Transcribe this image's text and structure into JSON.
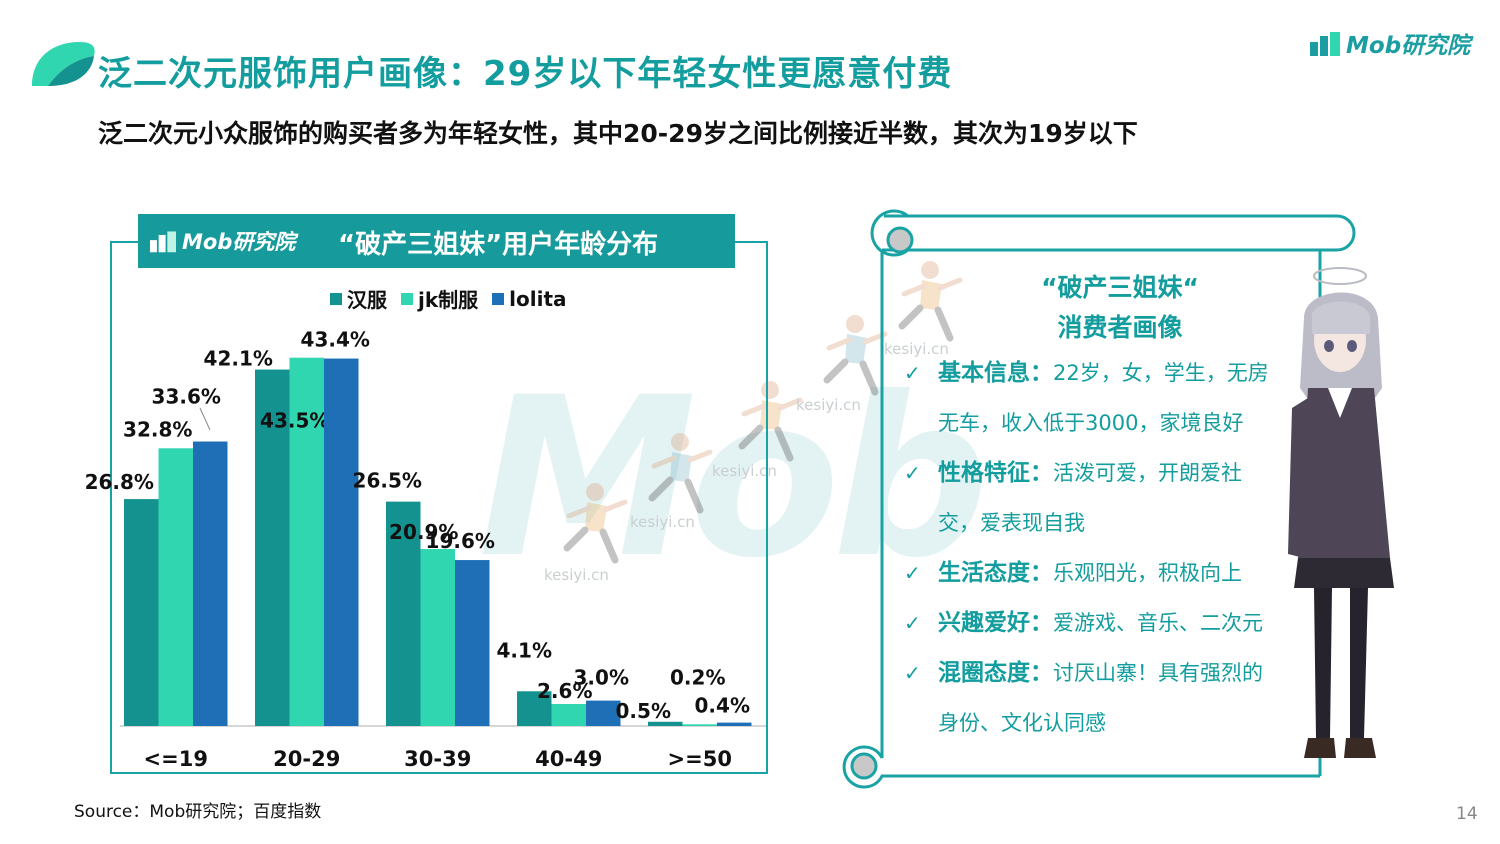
{
  "header": {
    "title": "泛二次元服饰用户画像：29岁以下年轻女性更愿意付费",
    "subtitle": "泛二次元小众服饰的购买者多为年轻女性，其中20-29岁之间比例接近半数，其次为19岁以下",
    "brand": "Mob研究院"
  },
  "watermark": {
    "big_text": "Mob",
    "site": "kesiyi.cn"
  },
  "chart_panel": {
    "brand": "Mob研究院",
    "title": "“破产三姐妹”用户年龄分布"
  },
  "colors": {
    "accent": "#139d9e",
    "hanfu": "#13928f",
    "jk": "#2fd6b0",
    "lolita": "#1e6fb5",
    "frame": "#1aa3a4"
  },
  "chart_data": {
    "type": "bar",
    "title": "“破产三姐妹”用户年龄分布",
    "categories": [
      "<=19",
      "20-29",
      "30-39",
      "40-49",
      ">=50"
    ],
    "series": [
      {
        "name": "汉服",
        "values": [
          26.8,
          42.1,
          26.5,
          4.1,
          0.5
        ],
        "labels": [
          "26.8%",
          "42.1%",
          "26.5%",
          "4.1%",
          "0.5%"
        ]
      },
      {
        "name": "jk制服",
        "values": [
          32.8,
          43.5,
          20.9,
          2.6,
          0.2
        ],
        "labels": [
          "32.8%",
          "43.5%",
          "20.9%",
          "2.6%",
          "0.2%"
        ]
      },
      {
        "name": "lolita",
        "values": [
          33.6,
          43.4,
          19.6,
          3.0,
          0.4
        ],
        "labels": [
          "33.6%",
          "43.4%",
          "19.6%",
          "3.0%",
          "0.4%"
        ]
      }
    ],
    "ylim": [
      0,
      45
    ],
    "legend_position": "top"
  },
  "persona": {
    "title_line1": "“破产三姐妹“",
    "title_line2": "消费者画像",
    "check_icon": "check-icon",
    "items": [
      {
        "label": "基本信息：",
        "text_line1": "22岁，女，学生，无房",
        "text_line2": "无车，收入低于3000，家境良好"
      },
      {
        "label": "性格特征：",
        "text_line1": "活泼可爱，开朗爱社",
        "text_line2": "交，爱表现自我"
      },
      {
        "label": "生活态度：",
        "text_line1": "乐观阳光，积极向上",
        "text_line2": ""
      },
      {
        "label": "兴趣爱好：",
        "text_line1": "爱游戏、音乐、二次元",
        "text_line2": ""
      },
      {
        "label": "混圈态度：",
        "text_line1": "讨厌山寨！具有强烈的",
        "text_line2": "身份、文化认同感"
      }
    ]
  },
  "footer": {
    "source": "Source：Mob研究院；百度指数",
    "page_number": "14"
  }
}
